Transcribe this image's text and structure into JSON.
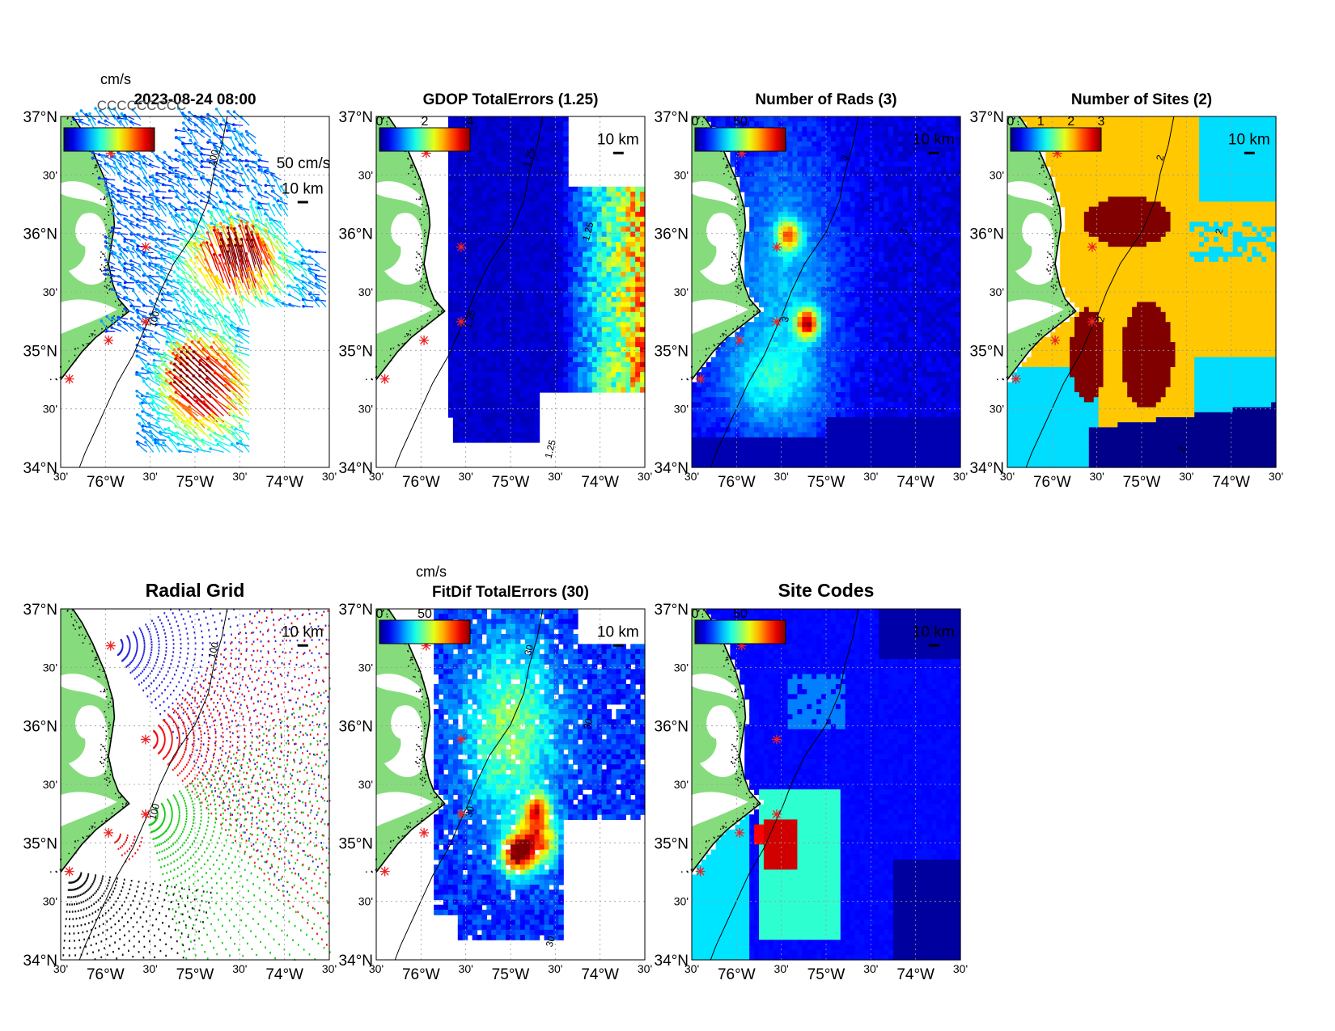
{
  "figure": {
    "type": "hf-radar-diagnostic-maps",
    "lat_labels": [
      "37°N",
      "30'",
      "36°N",
      "30'",
      "35°N",
      "30'",
      "34°N"
    ],
    "lon_labels": [
      "30'",
      "76°W",
      "30'",
      "75°W",
      "30'",
      "74°W",
      "30'"
    ],
    "scale_bar_label": "10 km",
    "coast_color": "#000000",
    "land_color": "#86dc7c",
    "site_marker_color": "#ee2222",
    "colormap": "jet"
  },
  "panels": [
    {
      "id": "totals",
      "title": "2023-08-24 08:00",
      "kind": "vectors",
      "colorbar": {
        "unit": "cm/s",
        "ticks": []
      },
      "reference_vector_label": "50 cm/s",
      "overlapping_labels": "CCCCCCCCC",
      "contour_labels": [
        "100",
        "100"
      ]
    },
    {
      "id": "gdop",
      "title": "GDOP TotalErrors (1.25)",
      "kind": "field-gdop",
      "colorbar": {
        "unit": "",
        "ticks": [
          "0",
          "2",
          "4"
        ]
      },
      "contour_labels": [
        "1.25",
        "1.25",
        "1.25",
        "1.25"
      ]
    },
    {
      "id": "nrads",
      "title": "Number of Rads (3)",
      "kind": "field-nrads",
      "colorbar": {
        "unit": "",
        "ticks": [
          "0",
          "50"
        ]
      },
      "contour_labels": [
        "3",
        "3",
        "3"
      ]
    },
    {
      "id": "nsites",
      "title": "Number of Sites (2)",
      "kind": "field-nsites",
      "colorbar": {
        "unit": "",
        "ticks": [
          "0",
          "1",
          "2",
          "3"
        ]
      },
      "contour_labels": [
        "2",
        "2",
        "2",
        "2"
      ]
    },
    {
      "id": "radgrid",
      "title": "Radial Grid",
      "kind": "radial-grid",
      "colorbar": null,
      "contour_labels": [
        "100",
        "100"
      ]
    },
    {
      "id": "fitdif",
      "title": "FitDif TotalErrors (30)",
      "kind": "field-fitdif",
      "colorbar": {
        "unit": "cm/s",
        "ticks": [
          "0",
          "50"
        ]
      },
      "contour_labels": [
        "30",
        "30",
        "30",
        "30"
      ]
    },
    {
      "id": "sitecodes",
      "title": "Site Codes",
      "kind": "field-sitecodes",
      "colorbar": {
        "unit": "",
        "ticks": [
          "0",
          "50"
        ]
      },
      "contour_labels": []
    }
  ]
}
